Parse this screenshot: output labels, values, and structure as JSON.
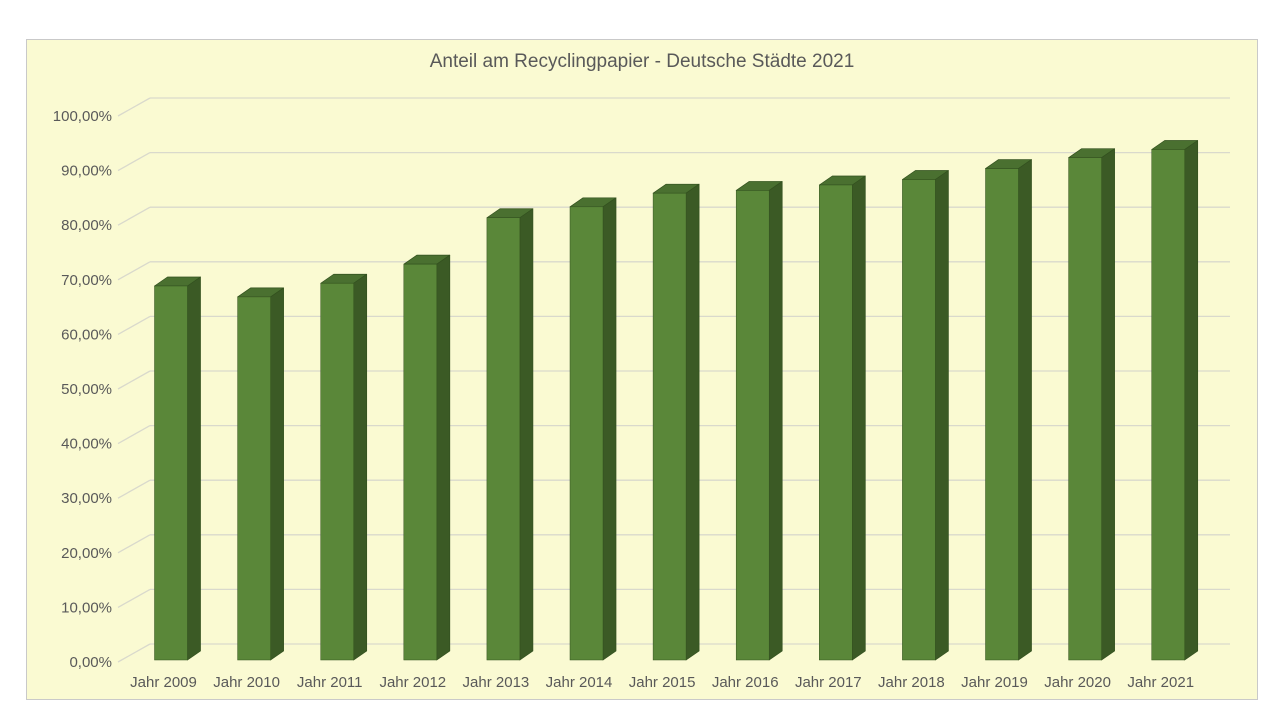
{
  "chart_data": {
    "type": "bar",
    "projection": "3d-extruded",
    "title": "Anteil am Recyclingpapier - Deutsche Städte 2021",
    "categories": [
      "Jahr 2009",
      "Jahr 2010",
      "Jahr 2011",
      "Jahr 2012",
      "Jahr 2013",
      "Jahr 2014",
      "Jahr 2015",
      "Jahr 2016",
      "Jahr 2017",
      "Jahr 2018",
      "Jahr 2019",
      "Jahr 2020",
      "Jahr 2021"
    ],
    "values": [
      68.5,
      66.5,
      69.0,
      72.5,
      81.0,
      83.0,
      85.5,
      86.0,
      87.0,
      88.0,
      90.0,
      92.0,
      93.5
    ],
    "unit": "%",
    "xlabel": "",
    "ylabel": "",
    "y_axis": {
      "min": 0,
      "max": 100,
      "step": 10,
      "ticks": [
        {
          "value": 0,
          "label": "0,00%"
        },
        {
          "value": 10,
          "label": "10,00%"
        },
        {
          "value": 20,
          "label": "20,00%"
        },
        {
          "value": 30,
          "label": "30,00%"
        },
        {
          "value": 40,
          "label": "40,00%"
        },
        {
          "value": 50,
          "label": "50,00%"
        },
        {
          "value": 60,
          "label": "60,00%"
        },
        {
          "value": 70,
          "label": "70,00%"
        },
        {
          "value": 80,
          "label": "80,00%"
        },
        {
          "value": 90,
          "label": "90,00%"
        },
        {
          "value": 100,
          "label": "100,00%"
        }
      ]
    },
    "grid": true,
    "legend": false,
    "colors": {
      "panel_background": "#fafad2",
      "panel_border": "#c9c9c9",
      "bar_front": "#5a8739",
      "bar_side": "#3b5a25",
      "bar_top": "#4a7030",
      "bar_edge": "#33511f",
      "gridline": "#d9d9cc",
      "text": "#595959"
    }
  }
}
